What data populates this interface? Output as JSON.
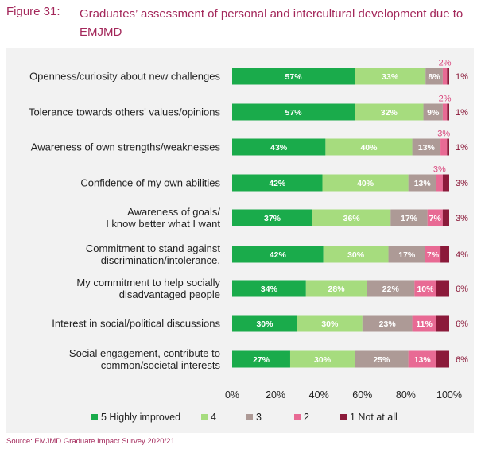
{
  "figure": {
    "number": "Figure 31:",
    "title": "Graduates’ assessment of personal and intercultural development due to EMJMD"
  },
  "source": "Source: EMJMD Graduate Impact Survey 2020/21",
  "colors": {
    "s5": "#1aab4b",
    "s4": "#a6dc7e",
    "s3": "#ad9a96",
    "s2": "#e86a94",
    "s1": "#8b1a3a",
    "label_dark": "#8b1a3a",
    "label_pink": "#d9477d"
  },
  "chart_data": {
    "type": "bar",
    "orientation": "horizontal",
    "stacked": true,
    "categories": [
      [
        "Openness/curiosity about new challenges"
      ],
      [
        "Tolerance towards others' values/opinions"
      ],
      [
        "Awareness of own strengths/weaknesses"
      ],
      [
        "Confidence of my own abilities"
      ],
      [
        "Awareness of goals/",
        "I know better what I want"
      ],
      [
        "Commitment to stand against",
        "discrimination/intolerance."
      ],
      [
        "My commitment to help socially",
        "disadvantaged people"
      ],
      [
        "Interest in social/political discussions"
      ],
      [
        "Social engagement, contribute to",
        "common/societal interests"
      ]
    ],
    "series": [
      {
        "name": "5 Highly improved",
        "values": [
          57,
          57,
          43,
          42,
          37,
          42,
          34,
          30,
          27
        ]
      },
      {
        "name": "4",
        "values": [
          33,
          32,
          40,
          40,
          36,
          30,
          28,
          30,
          30
        ]
      },
      {
        "name": "3",
        "values": [
          8,
          9,
          13,
          13,
          17,
          17,
          22,
          23,
          25
        ]
      },
      {
        "name": "2",
        "values": [
          2,
          2,
          3,
          3,
          7,
          7,
          10,
          11,
          13
        ]
      },
      {
        "name": "1 Not at all",
        "values": [
          1,
          1,
          1,
          3,
          3,
          4,
          6,
          6,
          6
        ]
      }
    ],
    "xlim": [
      0,
      100
    ],
    "xticks": [
      "0%",
      "20%",
      "40%",
      "60%",
      "80%",
      "100%"
    ],
    "legend_position": "bottom"
  }
}
